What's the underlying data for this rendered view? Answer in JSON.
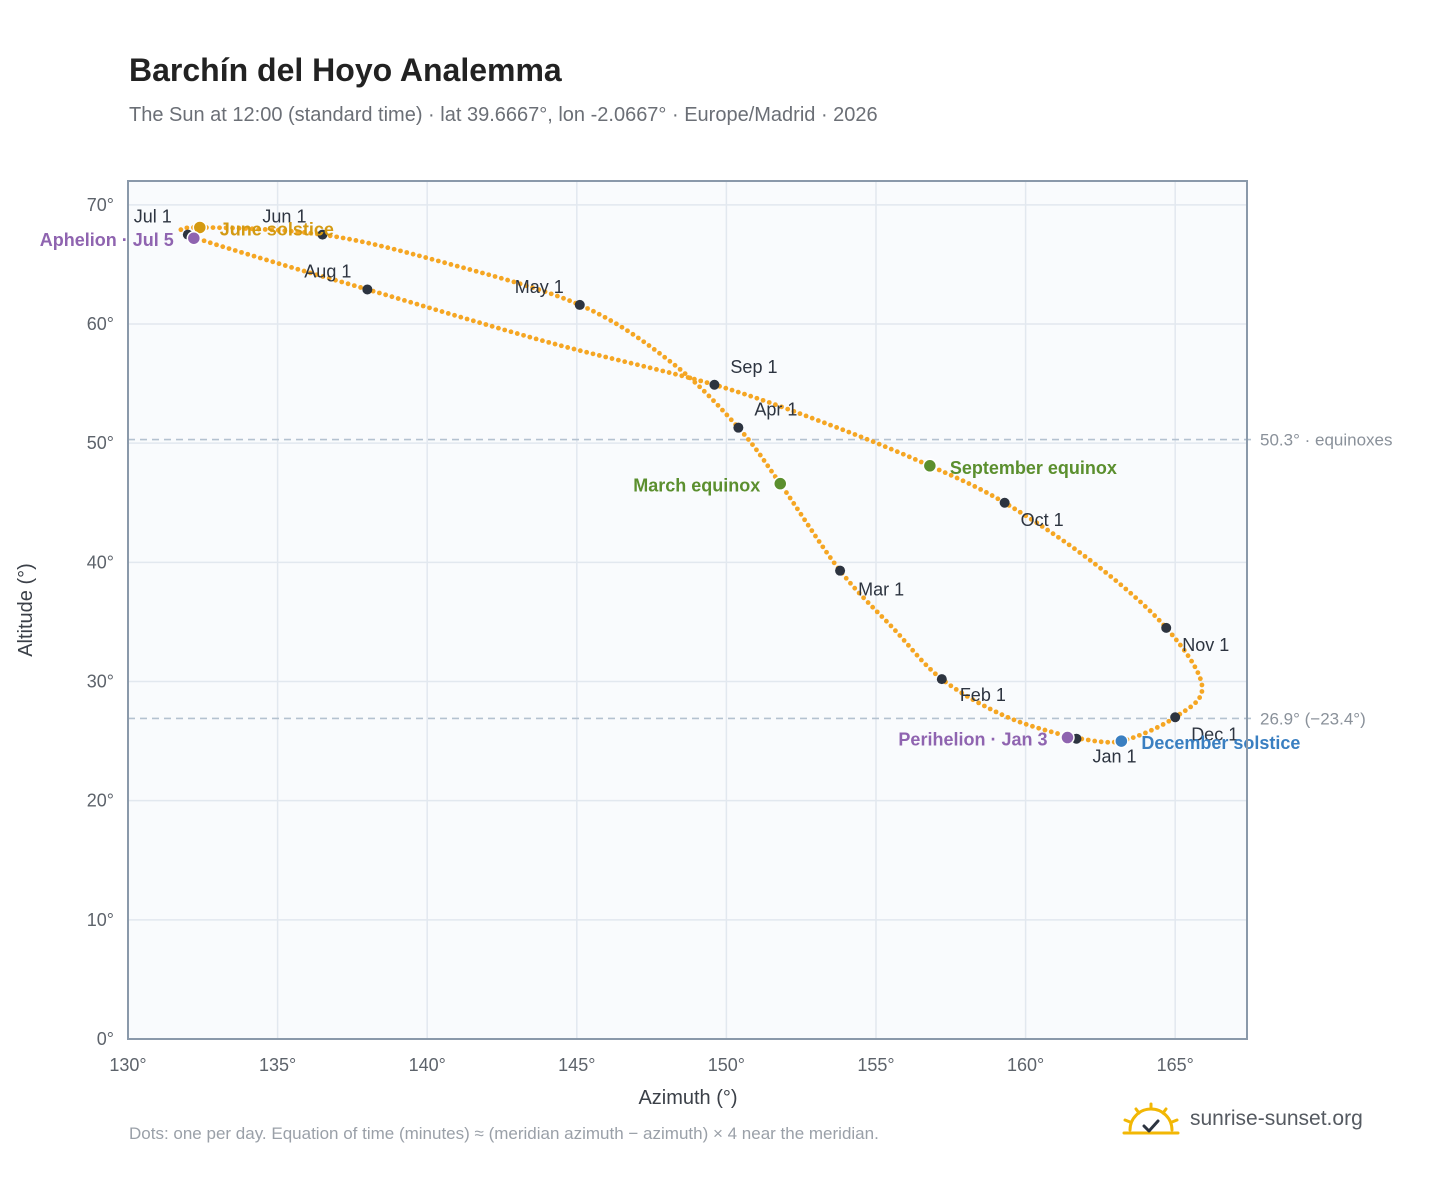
{
  "header": {
    "title": "Barchín del Hoyo Analemma",
    "subtitle": "The Sun at 12:00 (standard time) · lat 39.6667°, lon -2.0667° · Europe/Madrid · 2026"
  },
  "footer": {
    "note": "Dots: one per day. Equation of time (minutes) ≈ (meridian azimuth − azimuth) × 4 near the meridian.",
    "brand": "sunrise-sunset.org"
  },
  "colors": {
    "curve": "#f5a623",
    "month_dot": "#2d3440",
    "june_solstice": "#d49a12",
    "december_solstice": "#3a7fc1",
    "equinox": "#5b8f2e",
    "perihelion_aphelion": "#8f64b0",
    "reference_line": "#b4c2d0",
    "grid": "#e2e8ef",
    "plot_bg": "#f9fbfd",
    "frame": "#8a99aa"
  },
  "chart_data": {
    "type": "scatter",
    "xlabel": "Azimuth (°)",
    "ylabel": "Altitude (°)",
    "xlim": [
      130,
      167.4
    ],
    "ylim": [
      0,
      72
    ],
    "xticks": [
      "130°",
      "135°",
      "140°",
      "145°",
      "150°",
      "155°",
      "160°",
      "165°"
    ],
    "yticks": [
      "0°",
      "10°",
      "20°",
      "30°",
      "40°",
      "50°",
      "60°",
      "70°"
    ],
    "grid": true,
    "reference_lines": [
      {
        "y": 50.3,
        "label": "50.3° · equinoxes"
      },
      {
        "y": 26.9,
        "label": "26.9° (−23.4°)"
      }
    ],
    "daily_path": [
      {
        "date": "Jan 1",
        "x": 161.7,
        "y": 25.2
      },
      {
        "date": "Jan 16",
        "x": 159.4,
        "y": 27.0
      },
      {
        "date": "Feb 1",
        "x": 157.2,
        "y": 30.2
      },
      {
        "date": "Feb 15",
        "x": 155.6,
        "y": 34.4
      },
      {
        "date": "Mar 1",
        "x": 153.8,
        "y": 39.3
      },
      {
        "date": "Mar 20",
        "x": 151.8,
        "y": 46.6
      },
      {
        "date": "Apr 1",
        "x": 150.4,
        "y": 51.3
      },
      {
        "date": "Apr 15",
        "x": 148.2,
        "y": 56.7
      },
      {
        "date": "May 1",
        "x": 145.1,
        "y": 61.6
      },
      {
        "date": "May 15",
        "x": 140.5,
        "y": 65.2
      },
      {
        "date": "Jun 1",
        "x": 136.5,
        "y": 67.5
      },
      {
        "date": "Jun 21",
        "x": 132.4,
        "y": 68.1
      },
      {
        "date": "Jul 1",
        "x": 132.0,
        "y": 67.5
      },
      {
        "date": "Jul 15",
        "x": 134.6,
        "y": 65.4
      },
      {
        "date": "Aug 1",
        "x": 138.0,
        "y": 62.9
      },
      {
        "date": "Aug 15",
        "x": 144.0,
        "y": 58.5
      },
      {
        "date": "Sep 1",
        "x": 149.6,
        "y": 54.9
      },
      {
        "date": "Sep 15",
        "x": 153.6,
        "y": 51.4
      },
      {
        "date": "Sep 23",
        "x": 156.8,
        "y": 48.1
      },
      {
        "date": "Oct 1",
        "x": 159.3,
        "y": 45.0
      },
      {
        "date": "Oct 15",
        "x": 162.3,
        "y": 39.9
      },
      {
        "date": "Nov 1",
        "x": 164.7,
        "y": 34.5
      },
      {
        "date": "Nov 15",
        "x": 165.9,
        "y": 29.6
      },
      {
        "date": "Dec 1",
        "x": 165.0,
        "y": 27.0
      },
      {
        "date": "Dec 21",
        "x": 163.2,
        "y": 25.0
      },
      {
        "date": "Dec 31",
        "x": 161.8,
        "y": 25.2
      }
    ],
    "month_markers": [
      {
        "label": "Jan 1",
        "x": 161.7,
        "y": 25.2,
        "anchor": "start",
        "dx": 16,
        "dy": 24
      },
      {
        "label": "Feb 1",
        "x": 157.2,
        "y": 30.2,
        "anchor": "start",
        "dx": 18,
        "dy": 22
      },
      {
        "label": "Mar 1",
        "x": 153.8,
        "y": 39.3,
        "anchor": "start",
        "dx": 18,
        "dy": 25
      },
      {
        "label": "Apr 1",
        "x": 150.4,
        "y": 51.3,
        "anchor": "start",
        "dx": 16,
        "dy": -12
      },
      {
        "label": "May 1",
        "x": 145.1,
        "y": 61.6,
        "anchor": "end",
        "dx": -16,
        "dy": -12
      },
      {
        "label": "Jun 1",
        "x": 136.5,
        "y": 67.5,
        "anchor": "end",
        "dx": -16,
        "dy": -12
      },
      {
        "label": "Jul 1",
        "x": 132.0,
        "y": 67.5,
        "anchor": "end",
        "dx": -16,
        "dy": -12
      },
      {
        "label": "Aug 1",
        "x": 138.0,
        "y": 62.9,
        "anchor": "end",
        "dx": -16,
        "dy": -12
      },
      {
        "label": "Sep 1",
        "x": 149.6,
        "y": 54.9,
        "anchor": "start",
        "dx": 16,
        "dy": -12
      },
      {
        "label": "Oct 1",
        "x": 159.3,
        "y": 45.0,
        "anchor": "start",
        "dx": 16,
        "dy": 23
      },
      {
        "label": "Nov 1",
        "x": 164.7,
        "y": 34.5,
        "anchor": "start",
        "dx": 16,
        "dy": 23
      },
      {
        "label": "Dec 1",
        "x": 165.0,
        "y": 27.0,
        "anchor": "start",
        "dx": 16,
        "dy": 23
      }
    ],
    "events": [
      {
        "label": "June solstice",
        "x": 132.4,
        "y": 68.1,
        "color": "#d49a12",
        "anchor": "start",
        "dx": 20,
        "dy": 8
      },
      {
        "label": "Aphelion · Jul 5",
        "x": 132.2,
        "y": 67.2,
        "color": "#8f64b0",
        "anchor": "end",
        "dx": -20,
        "dy": 8
      },
      {
        "label": "March equinox",
        "x": 151.8,
        "y": 46.6,
        "color": "#5b8f2e",
        "anchor": "end",
        "dx": -20,
        "dy": 8
      },
      {
        "label": "September equinox",
        "x": 156.8,
        "y": 48.1,
        "color": "#5b8f2e",
        "anchor": "start",
        "dx": 20,
        "dy": 8
      },
      {
        "label": "Perihelion · Jan 3",
        "x": 161.4,
        "y": 25.3,
        "color": "#8f64b0",
        "anchor": "end",
        "dx": -20,
        "dy": 8
      },
      {
        "label": "December solstice",
        "x": 163.2,
        "y": 25.0,
        "color": "#3a7fc1",
        "anchor": "start",
        "dx": 20,
        "dy": 8
      }
    ]
  }
}
